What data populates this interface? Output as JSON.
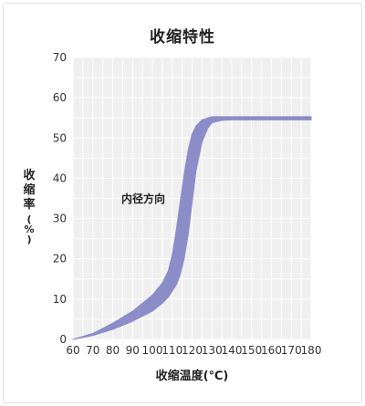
{
  "chart_data": {
    "type": "area",
    "title": "收缩特性",
    "xlabel": "收缩温度(℃)",
    "ylabel": "收缩率(%)",
    "xlim": [
      60,
      180
    ],
    "ylim": [
      0,
      70
    ],
    "x_ticks": [
      "60",
      "70",
      "80",
      "90",
      "100",
      "110",
      "120",
      "130",
      "140",
      "150",
      "160",
      "170",
      "180"
    ],
    "y_ticks": [
      "0",
      "10",
      "20",
      "30",
      "40",
      "50",
      "60",
      "70"
    ],
    "grid": true,
    "fill_color": "#8c8cc8",
    "plot_background": "#efefef",
    "annotation": "内径方向",
    "series": [
      {
        "x": [
          60,
          70,
          80,
          90,
          100,
          105,
          108,
          110,
          112,
          114,
          116,
          118,
          120,
          122,
          125,
          128,
          130,
          135,
          140,
          180
        ],
        "upper": [
          0,
          1.5,
          4,
          7,
          11,
          14,
          17,
          21,
          27,
          34,
          41,
          47,
          51,
          53,
          54.5,
          55,
          55.3,
          55.3,
          55.3,
          55.3
        ],
        "lower": [
          0,
          1,
          2.5,
          4.5,
          7,
          9,
          10.5,
          12,
          13.5,
          16,
          20,
          26,
          34,
          42,
          49,
          52.5,
          53.8,
          54.4,
          54.5,
          54.5
        ]
      }
    ]
  }
}
